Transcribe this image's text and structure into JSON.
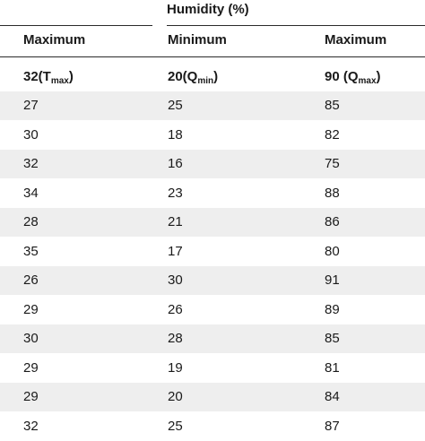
{
  "table": {
    "group_header": "Humidity (%)",
    "columns": [
      "Maximum",
      "Minimum",
      "Maximum"
    ],
    "summary_row": {
      "c1": {
        "main": "32(T",
        "sub": "max",
        "tail": ")"
      },
      "c2": {
        "main": "20(Q",
        "sub": "min",
        "tail": ")"
      },
      "c3": {
        "main": "90 (Q",
        "sub": "max",
        "tail": ")"
      }
    },
    "rows": [
      [
        "27",
        "25",
        "85"
      ],
      [
        "30",
        "18",
        "82"
      ],
      [
        "32",
        "16",
        "75"
      ],
      [
        "34",
        "23",
        "88"
      ],
      [
        "28",
        "21",
        "86"
      ],
      [
        "35",
        "17",
        "80"
      ],
      [
        "26",
        "30",
        "91"
      ],
      [
        "29",
        "26",
        "89"
      ],
      [
        "30",
        "28",
        "85"
      ],
      [
        "29",
        "19",
        "81"
      ],
      [
        "29",
        "20",
        "84"
      ],
      [
        "32",
        "25",
        "87"
      ]
    ]
  }
}
